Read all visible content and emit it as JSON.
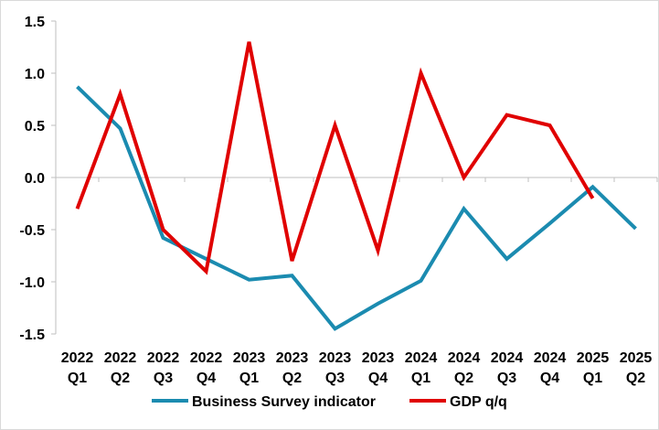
{
  "chart_data": {
    "type": "line",
    "title": "",
    "xlabel": "",
    "ylabel": "",
    "categories": [
      [
        "2022",
        "Q1"
      ],
      [
        "2022",
        "Q2"
      ],
      [
        "2022",
        "Q3"
      ],
      [
        "2022",
        "Q4"
      ],
      [
        "2023",
        "Q1"
      ],
      [
        "2023",
        "Q2"
      ],
      [
        "2023",
        "Q3"
      ],
      [
        "2023",
        "Q4"
      ],
      [
        "2024",
        "Q1"
      ],
      [
        "2024",
        "Q2"
      ],
      [
        "2024",
        "Q3"
      ],
      [
        "2024",
        "Q4"
      ],
      [
        "2025",
        "Q1"
      ],
      [
        "2025",
        "Q2"
      ]
    ],
    "ylim": [
      -1.5,
      1.5
    ],
    "yticks": [
      1.5,
      1.0,
      0.5,
      0.0,
      -0.5,
      -1.0,
      -1.5
    ],
    "ytick_labels": [
      "1.5",
      "1.0",
      "0.5",
      "0.0",
      "-0.5",
      "-1.0",
      "-1.5"
    ],
    "grid": false,
    "legend_position": "bottom",
    "series": [
      {
        "name": "Business Survey indicator",
        "color": "#1b8bb0",
        "values": [
          0.87,
          0.47,
          -0.58,
          -0.78,
          -0.98,
          -0.94,
          -1.45,
          -1.21,
          -0.99,
          -0.3,
          -0.78,
          -0.44,
          -0.09,
          -0.49
        ]
      },
      {
        "name": "GDP q/q",
        "color": "#e00000",
        "values": [
          -0.3,
          0.8,
          -0.5,
          -0.9,
          1.3,
          -0.8,
          0.5,
          -0.7,
          1.0,
          0.0,
          0.6,
          0.5,
          -0.2,
          null
        ]
      }
    ]
  }
}
